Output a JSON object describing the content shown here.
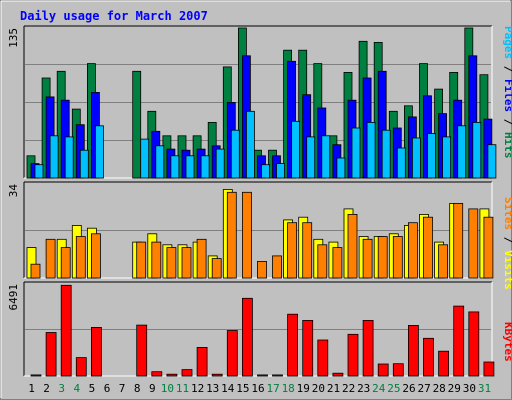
{
  "title": "Daily usage for March 2007",
  "colors": {
    "background": "#c0c0c0",
    "plot_bg": "#c0c0c0",
    "grid": "#808080",
    "title": "#0000ff",
    "hits": "#008040",
    "files": "#0000ff",
    "pages": "#00c0ff",
    "visits": "#ffff00",
    "sites": "#ff8000",
    "kbytes": "#ff0000",
    "weekend_label": "#008040",
    "weekday_label": "#000000"
  },
  "right_labels": {
    "top": {
      "pages": "Pages",
      "files": "Files",
      "hits": "Hits",
      "sep": " / "
    },
    "middle": {
      "sites": "Sites",
      "visits": "Visits",
      "sep": " / "
    },
    "bottom": {
      "kbytes": "KBytes"
    }
  },
  "chart_data": [
    {
      "type": "bar",
      "panel": "hits-files-pages",
      "ymax_label": "135",
      "ylim": [
        0,
        135
      ],
      "grid": true,
      "categories": [
        "1",
        "2",
        "3",
        "4",
        "5",
        "6",
        "7",
        "8",
        "9",
        "10",
        "11",
        "12",
        "13",
        "14",
        "15",
        "16",
        "17",
        "18",
        "19",
        "20",
        "21",
        "22",
        "23",
        "24",
        "25",
        "26",
        "27",
        "28",
        "29",
        "30",
        "31"
      ],
      "weekend_days": [
        "3",
        "4",
        "10",
        "11",
        "17",
        "18",
        "24",
        "25",
        "31"
      ],
      "series": [
        {
          "name": "Hits",
          "values": [
            20,
            90,
            96,
            62,
            103,
            0,
            0,
            96,
            60,
            38,
            38,
            38,
            50,
            100,
            135,
            25,
            25,
            115,
            115,
            103,
            38,
            95,
            123,
            122,
            60,
            65,
            103,
            80,
            95,
            135,
            93
          ]
        },
        {
          "name": "Files",
          "values": [
            13,
            73,
            70,
            48,
            77,
            0,
            0,
            0,
            42,
            26,
            25,
            26,
            29,
            68,
            110,
            20,
            20,
            105,
            75,
            63,
            30,
            70,
            90,
            96,
            45,
            55,
            74,
            58,
            70,
            110,
            53
          ]
        },
        {
          "name": "Pages",
          "values": [
            12,
            38,
            37,
            25,
            47,
            0,
            0,
            35,
            29,
            20,
            20,
            20,
            26,
            43,
            60,
            12,
            13,
            51,
            37,
            38,
            18,
            45,
            50,
            43,
            27,
            36,
            40,
            37,
            47,
            50,
            30
          ]
        }
      ]
    },
    {
      "type": "bar",
      "panel": "visits-sites",
      "ymax_label": "34",
      "ylim": [
        0,
        34
      ],
      "grid": true,
      "categories": [
        "1",
        "2",
        "3",
        "4",
        "5",
        "6",
        "7",
        "8",
        "9",
        "10",
        "11",
        "12",
        "13",
        "14",
        "15",
        "16",
        "17",
        "18",
        "19",
        "20",
        "21",
        "22",
        "23",
        "24",
        "25",
        "26",
        "27",
        "28",
        "29",
        "30",
        "31"
      ],
      "series": [
        {
          "name": "Visits",
          "values": [
            11,
            0,
            14,
            19,
            18,
            0,
            0,
            13,
            16,
            12,
            12,
            13,
            8,
            32,
            0,
            0,
            0,
            21,
            22,
            14,
            13,
            25,
            15,
            15,
            16,
            19,
            23,
            13,
            27,
            0,
            25
          ]
        },
        {
          "name": "Sites",
          "values": [
            5,
            14,
            11,
            15,
            16,
            0,
            0,
            13,
            13,
            11,
            11,
            14,
            7,
            31,
            31,
            6,
            8,
            20,
            20,
            12,
            11,
            23,
            14,
            15,
            15,
            20,
            22,
            12,
            27,
            25,
            22
          ]
        }
      ]
    },
    {
      "type": "bar",
      "panel": "kbytes",
      "ymax_label": "6491",
      "ylim": [
        0,
        6491
      ],
      "grid": true,
      "categories": [
        "1",
        "2",
        "3",
        "4",
        "5",
        "6",
        "7",
        "8",
        "9",
        "10",
        "11",
        "12",
        "13",
        "14",
        "15",
        "16",
        "17",
        "18",
        "19",
        "20",
        "21",
        "22",
        "23",
        "24",
        "25",
        "26",
        "27",
        "28",
        "29",
        "30",
        "31"
      ],
      "series": [
        {
          "name": "KBytes",
          "values": [
            80,
            3070,
            6400,
            1300,
            3430,
            0,
            0,
            3590,
            300,
            130,
            450,
            2020,
            130,
            3210,
            5480,
            80,
            80,
            4360,
            3920,
            2540,
            200,
            2940,
            3920,
            850,
            870,
            3570,
            2660,
            1750,
            4930,
            4520,
            990
          ]
        }
      ]
    }
  ]
}
